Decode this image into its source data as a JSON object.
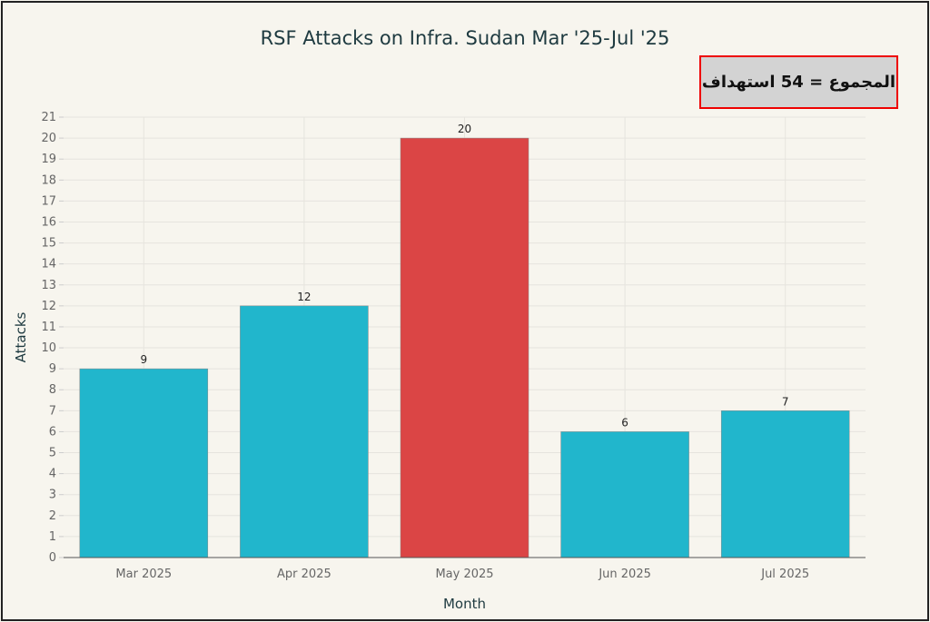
{
  "chart_data": {
    "type": "bar",
    "title": "RSF Attacks on Infra. Sudan Mar '25-Jul '25",
    "annotation": "المجموع = 54 استهداف",
    "xlabel": "Month",
    "ylabel": "Attacks",
    "categories": [
      "Mar 2025",
      "Apr 2025",
      "May 2025",
      "Jun 2025",
      "Jul 2025"
    ],
    "values": [
      9,
      12,
      20,
      6,
      7
    ],
    "colors": [
      "#21b6cc",
      "#21b6cc",
      "#db4545",
      "#21b6cc",
      "#21b6cc"
    ],
    "ylim": [
      0,
      21
    ],
    "yticks": [
      0,
      1,
      2,
      3,
      4,
      5,
      6,
      7,
      8,
      9,
      10,
      11,
      12,
      13,
      14,
      15,
      16,
      17,
      18,
      19,
      20,
      21
    ],
    "grid": true
  }
}
